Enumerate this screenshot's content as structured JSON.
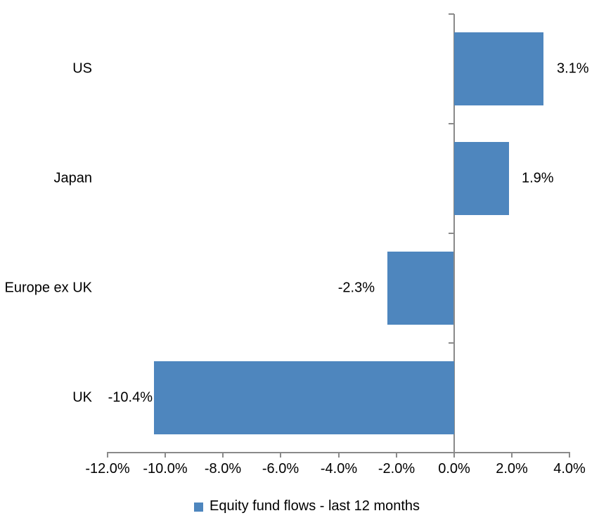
{
  "chart_data": {
    "type": "bar",
    "orientation": "horizontal",
    "title": "",
    "categories": [
      "US",
      "Japan",
      "Europe ex UK",
      "UK"
    ],
    "series": [
      {
        "name": "Equity fund flows - last 12 months",
        "values": [
          3.1,
          1.9,
          -2.3,
          -10.4
        ],
        "data_labels": [
          "3.1%",
          "1.9%",
          "-2.3%",
          "-10.4%"
        ]
      }
    ],
    "xlabel": "",
    "ylabel": "",
    "xlim": [
      -12,
      4
    ],
    "x_tick_step": 2,
    "x_tick_labels": [
      "-12.0%",
      "-10.0%",
      "-8.0%",
      "-6.0%",
      "-4.0%",
      "-2.0%",
      "0.0%",
      "2.0%",
      "4.0%"
    ],
    "grid": false,
    "legend": {
      "position": "bottom",
      "label": "Equity fund flows - last 12 months"
    },
    "colors": {
      "bar": "#4e86be",
      "axis": "#8a8a8a",
      "text": "#000000",
      "background": "#ffffff"
    }
  }
}
